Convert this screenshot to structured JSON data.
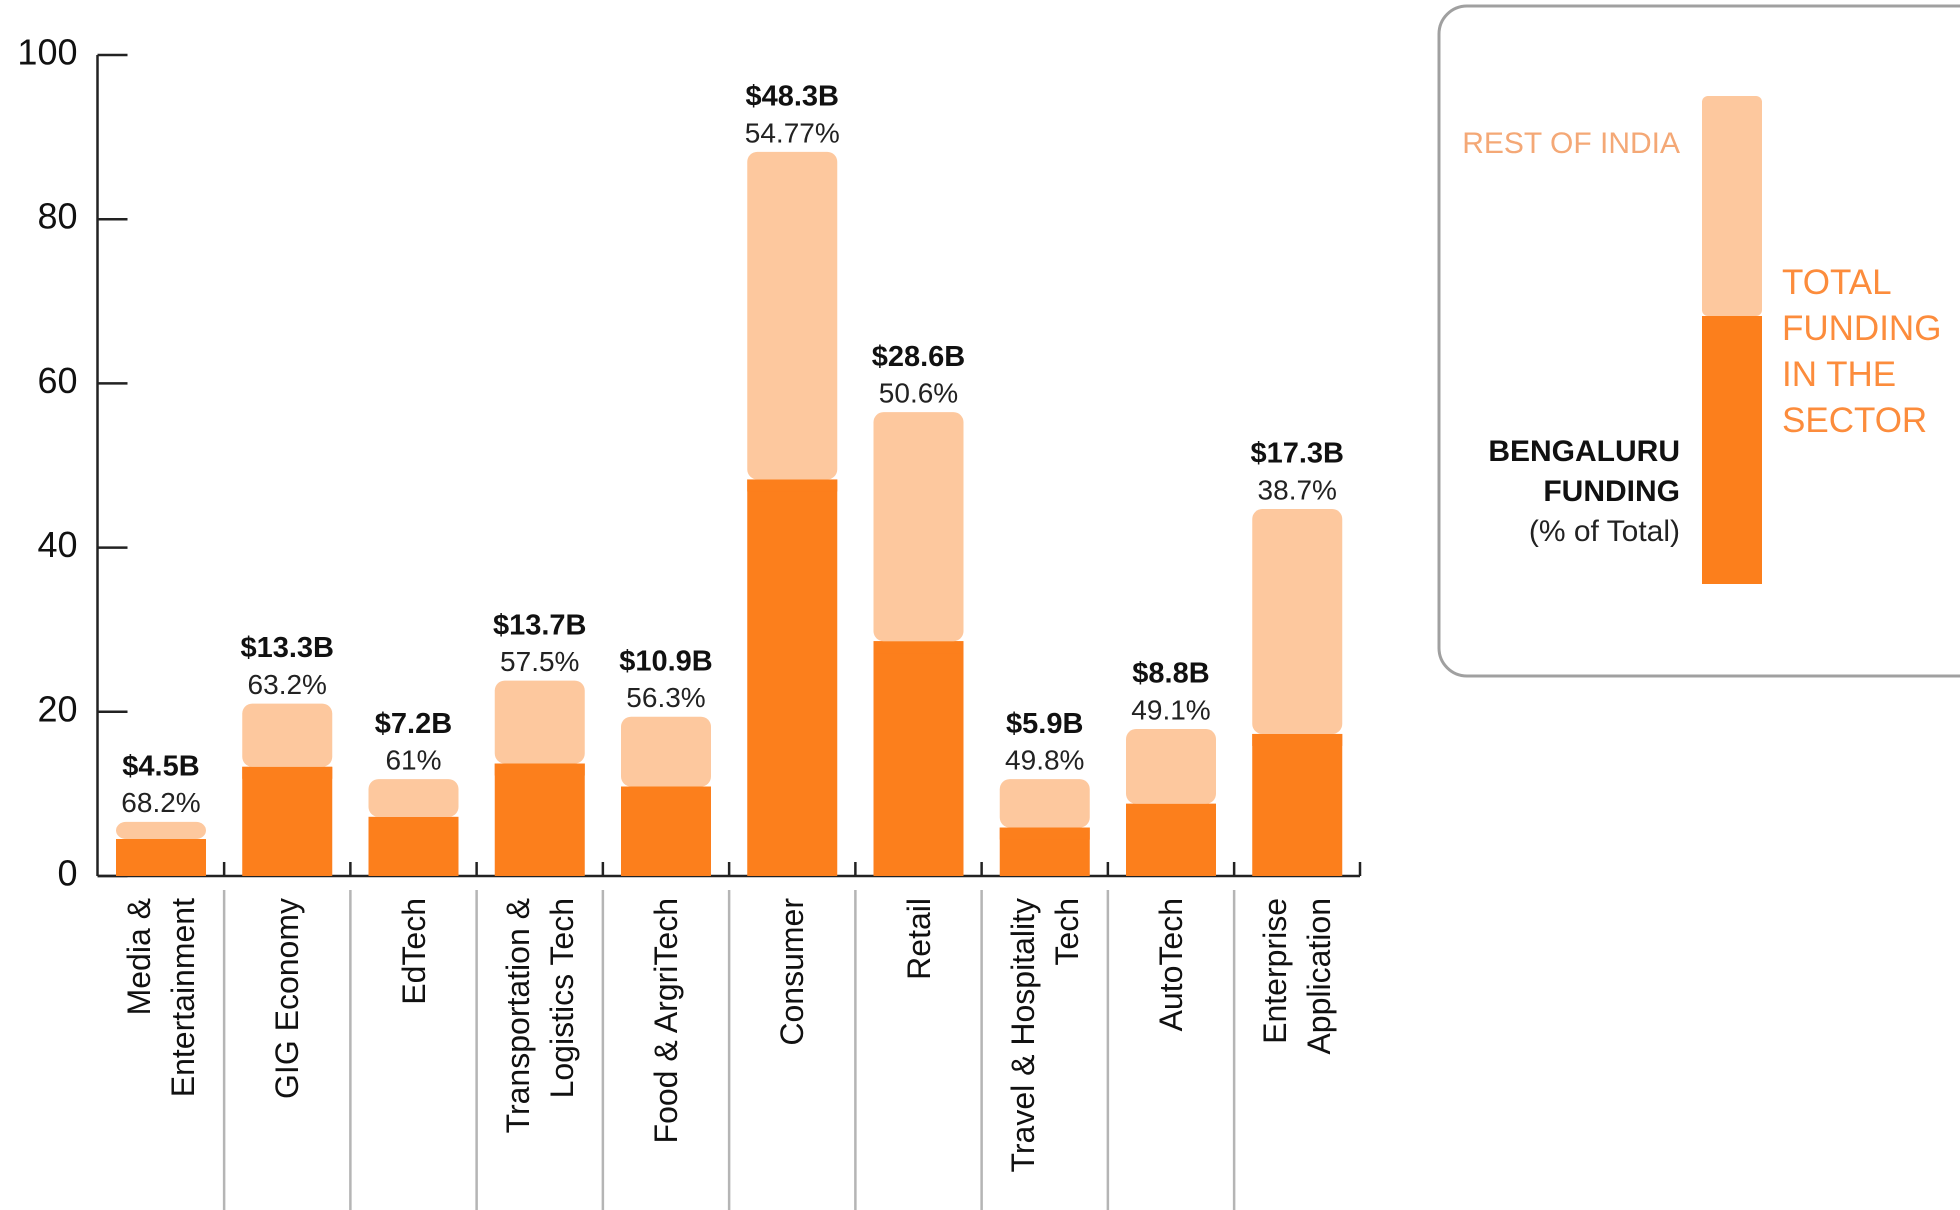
{
  "chart_data": {
    "type": "stacked_bar",
    "categories": [
      "Media & Entertainment",
      "GIG Economy",
      "EdTech",
      "Transportation & Logistics Tech",
      "Food & ArgriTech",
      "Consumer",
      "Retail",
      "Travel & Hospitality Tech",
      "AutoTech",
      "Enterprise Application"
    ],
    "series": [
      {
        "name": "BENGALURU FUNDING",
        "color": "#fc7f1c",
        "values": [
          4.5,
          13.3,
          7.2,
          13.7,
          10.9,
          48.3,
          28.6,
          5.9,
          8.8,
          17.3
        ],
        "value_labels": [
          "$4.5B",
          "$13.3B",
          "$7.2B",
          "$13.7B",
          "$10.9B",
          "$48.3B",
          "$28.6B",
          "$5.9B",
          "$8.8B",
          "$17.3B"
        ]
      },
      {
        "name": "REST OF INDIA",
        "color": "#fdc89e",
        "values": [
          2.1,
          7.7,
          4.6,
          10.1,
          8.5,
          39.9,
          27.9,
          5.9,
          9.1,
          27.4
        ]
      }
    ],
    "percent_labels": [
      "68.2%",
      "63.2%",
      "61%",
      "57.5%",
      "56.3%",
      "54.77%",
      "50.6%",
      "49.8%",
      "49.1%",
      "38.7%"
    ],
    "legend_note": "(% of Total)",
    "total_label": "TOTAL FUNDING IN THE SECTOR",
    "ylim": [
      0,
      100
    ],
    "yticks": [
      0,
      20,
      40,
      60,
      80,
      100
    ]
  }
}
